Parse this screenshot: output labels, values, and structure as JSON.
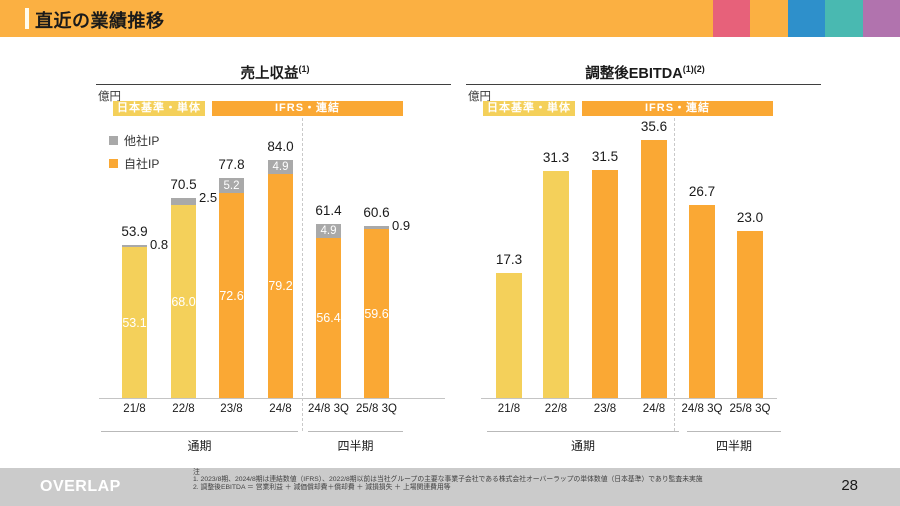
{
  "header": {
    "title": "直近の業績推移"
  },
  "corner_colors": [
    "#E7617A",
    "#FBB042",
    "#2E90CB",
    "#49B9B1",
    "#B173AE"
  ],
  "colors": {
    "header_band": "#FBB042",
    "japan_gaap": "#F4D05A",
    "ifrs": "#FAA834",
    "other_ip": "#A9A9A9",
    "footer_band": "#CBCBCB"
  },
  "chart_data": [
    {
      "type": "stacked-bar",
      "title": "売上収益",
      "title_sup": "(1)",
      "ylabel": "億円",
      "band_labels": [
        "日本基準・単体",
        "IFRS・連結"
      ],
      "categories": [
        "21/8",
        "22/8",
        "23/8",
        "24/8",
        "24/8 3Q",
        "25/8 3Q"
      ],
      "series": [
        {
          "name": "自社IP",
          "values": [
            53.1,
            68.0,
            72.6,
            79.2,
            56.4,
            59.6
          ]
        },
        {
          "name": "他社IP",
          "values": [
            0.8,
            2.5,
            5.2,
            4.9,
            4.9,
            0.9
          ]
        }
      ],
      "totals": [
        53.9,
        70.5,
        77.8,
        84.0,
        61.4,
        60.6
      ],
      "bar_color_keys": [
        "japan_gaap",
        "japan_gaap",
        "ifrs",
        "ifrs",
        "ifrs",
        "ifrs"
      ],
      "other_label_inside": [
        false,
        false,
        true,
        true,
        true,
        false
      ],
      "legend": [
        {
          "label": "他社IP",
          "color_key": "other_ip"
        },
        {
          "label": "自社IP",
          "color_key": "ifrs"
        }
      ],
      "groups": [
        {
          "label": "通期",
          "span": [
            0,
            3
          ]
        },
        {
          "label": "四半期",
          "span": [
            4,
            5
          ]
        }
      ],
      "ylim": [
        0,
        90
      ],
      "grid": false,
      "legend_position": "upper-left"
    },
    {
      "type": "bar",
      "title": "調整後EBITDA",
      "title_sup": "(1)(2)",
      "ylabel": "億円",
      "band_labels": [
        "日本基準・単体",
        "IFRS・連結"
      ],
      "categories": [
        "21/8",
        "22/8",
        "23/8",
        "24/8",
        "24/8 3Q",
        "25/8 3Q"
      ],
      "values": [
        17.3,
        31.3,
        31.5,
        35.6,
        26.7,
        23.0
      ],
      "bar_color_keys": [
        "japan_gaap",
        "japan_gaap",
        "ifrs",
        "ifrs",
        "ifrs",
        "ifrs"
      ],
      "groups": [
        {
          "label": "通期",
          "span": [
            0,
            3
          ]
        },
        {
          "label": "四半期",
          "span": [
            4,
            5
          ]
        }
      ],
      "ylim": [
        0,
        40
      ],
      "grid": false
    }
  ],
  "footer": {
    "logo_text": "OVERLAP",
    "notes_heading": "注",
    "notes": [
      "1. 2023/8期、2024/8期は連結数値（IFRS）、2022/8期以前は当社グループの主要な事業子会社である株式会社オーバーラップの単体数値（日本基準）であり監査未実施",
      "2. 調整後EBITDA ＝ 営業利益 ＋ 減価償却費＋償却費 ＋ 減損損失 ＋ 上場関連費用等"
    ],
    "page_number": "28"
  }
}
